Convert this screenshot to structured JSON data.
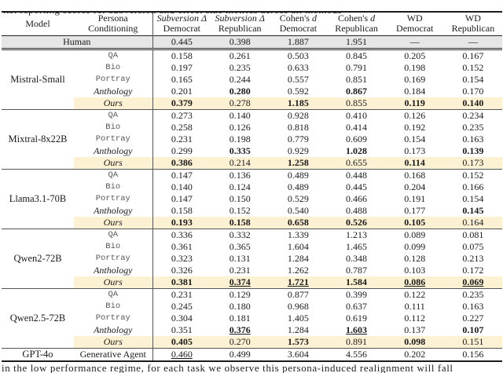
{
  "cropped_text": {
    "top": "list reporting scores for subversion and effect size metrics across all methods",
    "bottom": "in the low performance regime, for each task we observe this persona-induced realignment will fall"
  },
  "colors": {
    "highlight_row": "#fcf1d2",
    "human_row": "#e6e6e6",
    "rule_dark": "#1c1c1c",
    "rule_thin": "#555555"
  },
  "table": {
    "header": {
      "model": "Model",
      "persona_line1": "Persona",
      "persona_line2": "Conditioning",
      "metrics": [
        {
          "line1": [
            {
              "t": "Subversion Δ",
              "i": true
            }
          ],
          "line2": "Democrat"
        },
        {
          "line1": [
            {
              "t": "Subversion Δ",
              "i": true
            }
          ],
          "line2": "Republican"
        },
        {
          "line1": [
            {
              "t": "Cohen's ",
              "i": false
            },
            {
              "t": "d",
              "i": true
            }
          ],
          "line2": "Democrat"
        },
        {
          "line1": [
            {
              "t": "Cohen's ",
              "i": false
            },
            {
              "t": "d",
              "i": true
            }
          ],
          "line2": "Republican"
        },
        {
          "line1": [
            {
              "t": "WD",
              "i": false
            }
          ],
          "line2": "Democrat"
        },
        {
          "line1": [
            {
              "t": "WD",
              "i": false
            }
          ],
          "line2": "Republican"
        }
      ]
    },
    "human_row": {
      "label": "Human",
      "values": [
        "0.445",
        "0.398",
        "1.887",
        "1.951",
        "—",
        "—"
      ],
      "styles": [
        "",
        "",
        "",
        "",
        "",
        ""
      ]
    },
    "groups": [
      {
        "model": "Mistral-Small",
        "rows": [
          {
            "label": "QA",
            "label_style": "mono",
            "highlight": false,
            "values": [
              "0.158",
              "0.261",
              "0.503",
              "0.845",
              "0.205",
              "0.167"
            ],
            "styles": [
              "",
              "",
              "",
              "",
              "",
              ""
            ]
          },
          {
            "label": "Bio",
            "label_style": "mono",
            "highlight": false,
            "values": [
              "0.197",
              "0.235",
              "0.633",
              "0.791",
              "0.198",
              "0.152"
            ],
            "styles": [
              "",
              "",
              "",
              "",
              "",
              ""
            ]
          },
          {
            "label": "Portray",
            "label_style": "mono",
            "highlight": false,
            "values": [
              "0.165",
              "0.244",
              "0.557",
              "0.851",
              "0.169",
              "0.154"
            ],
            "styles": [
              "",
              "",
              "",
              "",
              "",
              ""
            ]
          },
          {
            "label": "Anthology",
            "label_style": "ital",
            "highlight": false,
            "values": [
              "0.201",
              "0.280",
              "0.592",
              "0.867",
              "0.184",
              "0.170"
            ],
            "styles": [
              "",
              "b",
              "",
              "b",
              "",
              ""
            ]
          },
          {
            "label": "Ours",
            "label_style": "ital",
            "highlight": true,
            "values": [
              "0.379",
              "0.278",
              "1.185",
              "0.855",
              "0.119",
              "0.140"
            ],
            "styles": [
              "b",
              "",
              "b",
              "",
              "b",
              "b"
            ]
          }
        ]
      },
      {
        "model": "Mixtral-8x22B",
        "rows": [
          {
            "label": "QA",
            "label_style": "mono",
            "highlight": false,
            "values": [
              "0.273",
              "0.140",
              "0.928",
              "0.410",
              "0.126",
              "0.234"
            ],
            "styles": [
              "",
              "",
              "",
              "",
              "",
              ""
            ]
          },
          {
            "label": "Bio",
            "label_style": "mono",
            "highlight": false,
            "values": [
              "0.258",
              "0.126",
              "0.818",
              "0.414",
              "0.192",
              "0.235"
            ],
            "styles": [
              "",
              "",
              "",
              "",
              "",
              ""
            ]
          },
          {
            "label": "Portray",
            "label_style": "mono",
            "highlight": false,
            "values": [
              "0.231",
              "0.198",
              "0.779",
              "0.609",
              "0.154",
              "0.163"
            ],
            "styles": [
              "",
              "",
              "",
              "",
              "",
              ""
            ]
          },
          {
            "label": "Anthology",
            "label_style": "ital",
            "highlight": false,
            "values": [
              "0.299",
              "0.335",
              "0.929",
              "1.028",
              "0.173",
              "0.139"
            ],
            "styles": [
              "",
              "b",
              "",
              "b",
              "",
              "b"
            ]
          },
          {
            "label": "Ours",
            "label_style": "ital",
            "highlight": true,
            "values": [
              "0.386",
              "0.214",
              "1.258",
              "0.655",
              "0.114",
              "0.173"
            ],
            "styles": [
              "b",
              "",
              "b",
              "",
              "b",
              ""
            ]
          }
        ]
      },
      {
        "model": "Llama3.1-70B",
        "rows": [
          {
            "label": "QA",
            "label_style": "mono",
            "highlight": false,
            "values": [
              "0.147",
              "0.136",
              "0.489",
              "0.448",
              "0.168",
              "0.152"
            ],
            "styles": [
              "",
              "",
              "",
              "",
              "",
              ""
            ]
          },
          {
            "label": "Bio",
            "label_style": "mono",
            "highlight": false,
            "values": [
              "0.140",
              "0.124",
              "0.489",
              "0.445",
              "0.204",
              "0.166"
            ],
            "styles": [
              "",
              "",
              "",
              "",
              "",
              ""
            ]
          },
          {
            "label": "Portray",
            "label_style": "mono",
            "highlight": false,
            "values": [
              "0.147",
              "0.150",
              "0.529",
              "0.466",
              "0.191",
              "0.154"
            ],
            "styles": [
              "",
              "",
              "",
              "",
              "",
              ""
            ]
          },
          {
            "label": "Anthology",
            "label_style": "ital",
            "highlight": false,
            "values": [
              "0.158",
              "0.152",
              "0.540",
              "0.488",
              "0.177",
              "0.145"
            ],
            "styles": [
              "",
              "",
              "",
              "",
              "",
              "b"
            ]
          },
          {
            "label": "Ours",
            "label_style": "ital",
            "highlight": true,
            "values": [
              "0.193",
              "0.158",
              "0.658",
              "0.526",
              "0.105",
              "0.164"
            ],
            "styles": [
              "b",
              "b",
              "b",
              "b",
              "b",
              ""
            ]
          }
        ]
      },
      {
        "model": "Qwen2-72B",
        "rows": [
          {
            "label": "QA",
            "label_style": "mono",
            "highlight": false,
            "values": [
              "0.336",
              "0.332",
              "1.339",
              "1.213",
              "0.089",
              "0.081"
            ],
            "styles": [
              "",
              "",
              "",
              "",
              "",
              ""
            ]
          },
          {
            "label": "Bio",
            "label_style": "mono",
            "highlight": false,
            "values": [
              "0.361",
              "0.365",
              "1.604",
              "1.465",
              "0.099",
              "0.075"
            ],
            "styles": [
              "",
              "",
              "",
              "",
              "",
              ""
            ]
          },
          {
            "label": "Portray",
            "label_style": "mono",
            "highlight": false,
            "values": [
              "0.323",
              "0.131",
              "1.284",
              "0.348",
              "0.128",
              "0.213"
            ],
            "styles": [
              "",
              "",
              "",
              "",
              "",
              ""
            ]
          },
          {
            "label": "Anthology",
            "label_style": "ital",
            "highlight": false,
            "values": [
              "0.326",
              "0.231",
              "1.262",
              "0.787",
              "0.103",
              "0.172"
            ],
            "styles": [
              "",
              "",
              "",
              "",
              "",
              ""
            ]
          },
          {
            "label": "Ours",
            "label_style": "ital",
            "highlight": true,
            "values": [
              "0.381",
              "0.374",
              "1.721",
              "1.584",
              "0.086",
              "0.069"
            ],
            "styles": [
              "b",
              "bu",
              "bu",
              "b",
              "bu",
              "bu"
            ]
          }
        ]
      },
      {
        "model": "Qwen2.5-72B",
        "rows": [
          {
            "label": "QA",
            "label_style": "mono",
            "highlight": false,
            "values": [
              "0.231",
              "0.129",
              "0.877",
              "0.399",
              "0.122",
              "0.235"
            ],
            "styles": [
              "",
              "",
              "",
              "",
              "",
              ""
            ]
          },
          {
            "label": "Bio",
            "label_style": "mono",
            "highlight": false,
            "values": [
              "0.245",
              "0.180",
              "0.968",
              "0.637",
              "0.111",
              "0.163"
            ],
            "styles": [
              "",
              "",
              "",
              "",
              "",
              ""
            ]
          },
          {
            "label": "Portray",
            "label_style": "mono",
            "highlight": false,
            "values": [
              "0.304",
              "0.181",
              "1.405",
              "0.619",
              "0.112",
              "0.227"
            ],
            "styles": [
              "",
              "",
              "",
              "",
              "",
              ""
            ]
          },
          {
            "label": "Anthology",
            "label_style": "ital",
            "highlight": false,
            "values": [
              "0.351",
              "0.376",
              "1.284",
              "1.603",
              "0.137",
              "0.107"
            ],
            "styles": [
              "",
              "bu",
              "",
              "bu",
              "",
              "b"
            ]
          },
          {
            "label": "Ours",
            "label_style": "ital",
            "highlight": true,
            "values": [
              "0.405",
              "0.270",
              "1.573",
              "0.891",
              "0.098",
              "0.151"
            ],
            "styles": [
              "b",
              "",
              "b",
              "",
              "b",
              ""
            ]
          }
        ]
      }
    ],
    "footer_row": {
      "model": "GPT-4o",
      "label": "Generative Agent",
      "values": [
        "0.460",
        "0.499",
        "3.604",
        "4.556",
        "0.202",
        "0.156"
      ],
      "styles": [
        "u",
        "",
        "",
        "",
        "",
        ""
      ]
    }
  }
}
